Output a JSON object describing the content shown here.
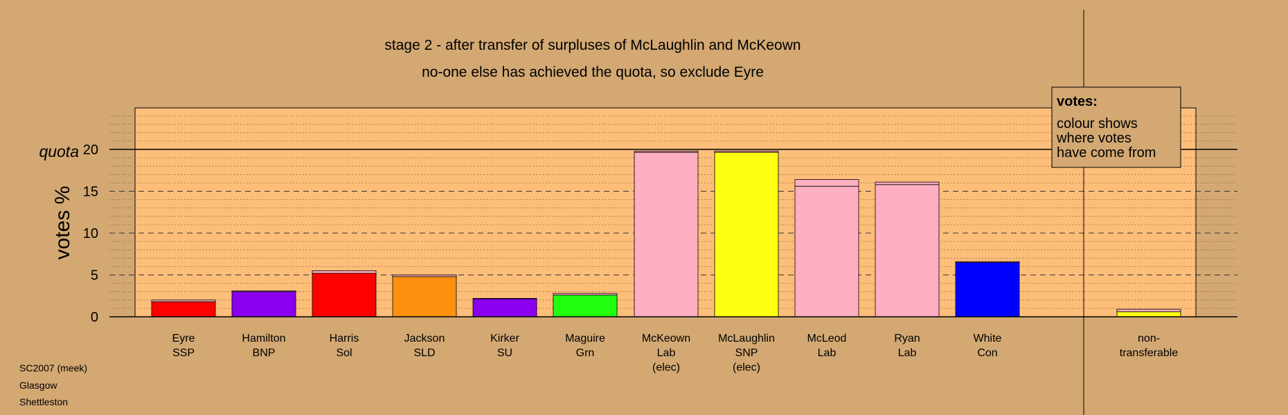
{
  "chart_data": {
    "type": "bar",
    "title": "stage 2 - after transfer of surpluses of McLaughlin and McKeown",
    "subtitle": "no-one else has achieved the quota, so exclude Eyre",
    "ylabel": "votes %",
    "ylim": [
      0,
      25
    ],
    "yticks": [
      "0",
      "5",
      "10",
      "15",
      "20"
    ],
    "quota": {
      "label": "quota",
      "value": 20
    },
    "categories": [
      {
        "lines": [
          "Eyre",
          "SSP"
        ],
        "color": "#ff0000",
        "total": 2.0,
        "transfer": 0.2
      },
      {
        "lines": [
          "Hamilton",
          "BNP"
        ],
        "color": "#8a00ee",
        "total": 3.1,
        "transfer": 0.1
      },
      {
        "lines": [
          "Harris",
          "Sol"
        ],
        "color": "#ff0000",
        "total": 5.5,
        "transfer": 0.3
      },
      {
        "lines": [
          "Jackson",
          "SLD"
        ],
        "color": "#ff9010",
        "total": 5.0,
        "transfer": 0.2
      },
      {
        "lines": [
          "Kirker",
          "SU"
        ],
        "color": "#8a00ee",
        "total": 2.2,
        "transfer": 0.05
      },
      {
        "lines": [
          "Maguire",
          "Grn"
        ],
        "color": "#22ff11",
        "total": 2.8,
        "transfer": 0.2
      },
      {
        "lines": [
          "McKeown",
          "Lab",
          "(elec)"
        ],
        "color": "#ffafc2",
        "total": 19.8,
        "transfer": 0.15
      },
      {
        "lines": [
          "McLaughlin",
          "SNP",
          "(elec)"
        ],
        "color": "#ffff10",
        "total": 19.8,
        "transfer": 0.15
      },
      {
        "lines": [
          "McLeod",
          "Lab"
        ],
        "color": "#ffafc2",
        "total": 16.4,
        "transfer": 0.8
      },
      {
        "lines": [
          "Ryan",
          "Lab"
        ],
        "color": "#ffafc2",
        "total": 16.1,
        "transfer": 0.3
      },
      {
        "lines": [
          "White",
          "Con"
        ],
        "color": "#0000ff",
        "total": 6.6,
        "transfer": 0.1
      },
      {
        "lines": [
          "non-",
          "transferable"
        ],
        "color": "#ffff10",
        "total": 0.9,
        "transfer": 0.3
      }
    ],
    "transfer_color": "#ffafc2",
    "legend": {
      "title": "votes:",
      "lines": [
        "colour shows",
        "where votes",
        "have come from"
      ],
      "placement": "top-right"
    },
    "grid": true
  },
  "footer": {
    "lines": [
      "SC2007 (meek)",
      "Glasgow",
      "Shettleston"
    ]
  },
  "colors": {
    "background": "#d3a873",
    "plot_area": "#fdbe7a"
  }
}
